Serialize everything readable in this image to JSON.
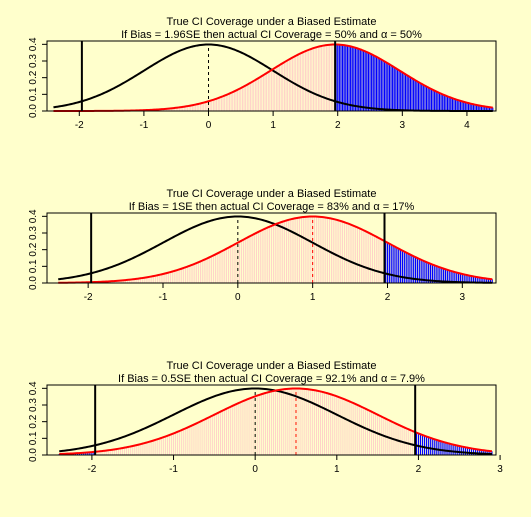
{
  "figure": {
    "background": "#ffffcc"
  },
  "chart_data": [
    {
      "type": "area",
      "title": "True CI Coverage under a Biased Estimate",
      "subtitle": "If Bias = 1.96SE then actual CI Coverage = 50% and α = 50%",
      "xlabel": "",
      "ylabel": "",
      "bias": 1.96,
      "xlim": [
        -2.5,
        4.45
      ],
      "ylim": [
        0,
        0.42
      ],
      "x_range": [
        -2.4,
        4.4
      ],
      "x_ticks": [
        "-2",
        "-1",
        "0",
        "1",
        "2",
        "3",
        "4"
      ],
      "x_tick_values": [
        -2,
        -1,
        0,
        1,
        2,
        3,
        4
      ],
      "y_ticks": [
        "0.0",
        "0.1",
        "0.2",
        "0.3",
        "0.4"
      ],
      "y_tick_values": [
        0,
        0.1,
        0.2,
        0.3,
        0.4
      ],
      "critical_lines": [
        -1.96,
        1.96
      ],
      "mean_lines": [
        0,
        1.96
      ],
      "series": [
        {
          "name": "",
          "color": "#000000",
          "mean": 0,
          "sd": 1
        },
        {
          "name": "",
          "color": "#ff0000",
          "mean": 1.96,
          "sd": 1
        }
      ],
      "fill_colors": {
        "inside": "#ffc8c8",
        "outside": "#0000ff"
      },
      "grid": false
    },
    {
      "type": "area",
      "title": "True CI Coverage under a Biased Estimate",
      "subtitle": "If Bias = 1SE then actual CI Coverage = 83% and α = 17%",
      "xlabel": "",
      "ylabel": "",
      "bias": 1,
      "xlim": [
        -2.55,
        3.45
      ],
      "ylim": [
        0,
        0.42
      ],
      "x_range": [
        -2.4,
        3.4
      ],
      "x_ticks": [
        "-2",
        "-1",
        "0",
        "1",
        "2",
        "3"
      ],
      "x_tick_values": [
        -2,
        -1,
        0,
        1,
        2,
        3
      ],
      "y_ticks": [
        "0.0",
        "0.1",
        "0.2",
        "0.3",
        "0.4"
      ],
      "y_tick_values": [
        0,
        0.1,
        0.2,
        0.3,
        0.4
      ],
      "critical_lines": [
        -1.96,
        1.96
      ],
      "mean_lines": [
        0,
        1
      ],
      "series": [
        {
          "name": "",
          "color": "#000000",
          "mean": 0,
          "sd": 1
        },
        {
          "name": "",
          "color": "#ff0000",
          "mean": 1,
          "sd": 1
        }
      ],
      "fill_colors": {
        "inside": "#ffc8c8",
        "outside": "#0000ff"
      },
      "grid": false
    },
    {
      "type": "area",
      "title": "True CI Coverage under a Biased Estimate",
      "subtitle": "If Bias = 0.5SE then actual CI Coverage = 92.1% and α = 7.9%",
      "xlabel": "",
      "ylabel": "",
      "bias": 0.5,
      "xlim": [
        -2.55,
        2.95
      ],
      "ylim": [
        0,
        0.42
      ],
      "x_range": [
        -2.4,
        2.9
      ],
      "x_ticks": [
        "-2",
        "-1",
        "0",
        "1",
        "2",
        "3"
      ],
      "x_tick_values": [
        -2,
        -1,
        0,
        1,
        2,
        3
      ],
      "y_ticks": [
        "0.0",
        "0.1",
        "0.2",
        "0.3",
        "0.4"
      ],
      "y_tick_values": [
        0,
        0.1,
        0.2,
        0.3,
        0.4
      ],
      "critical_lines": [
        -1.96,
        1.96
      ],
      "mean_lines": [
        0,
        0.5
      ],
      "series": [
        {
          "name": "",
          "color": "#000000",
          "mean": 0,
          "sd": 1
        },
        {
          "name": "",
          "color": "#ff0000",
          "mean": 0.5,
          "sd": 1
        }
      ],
      "fill_colors": {
        "inside": "#ffc8c8",
        "outside": "#0000ff"
      },
      "grid": false
    }
  ]
}
